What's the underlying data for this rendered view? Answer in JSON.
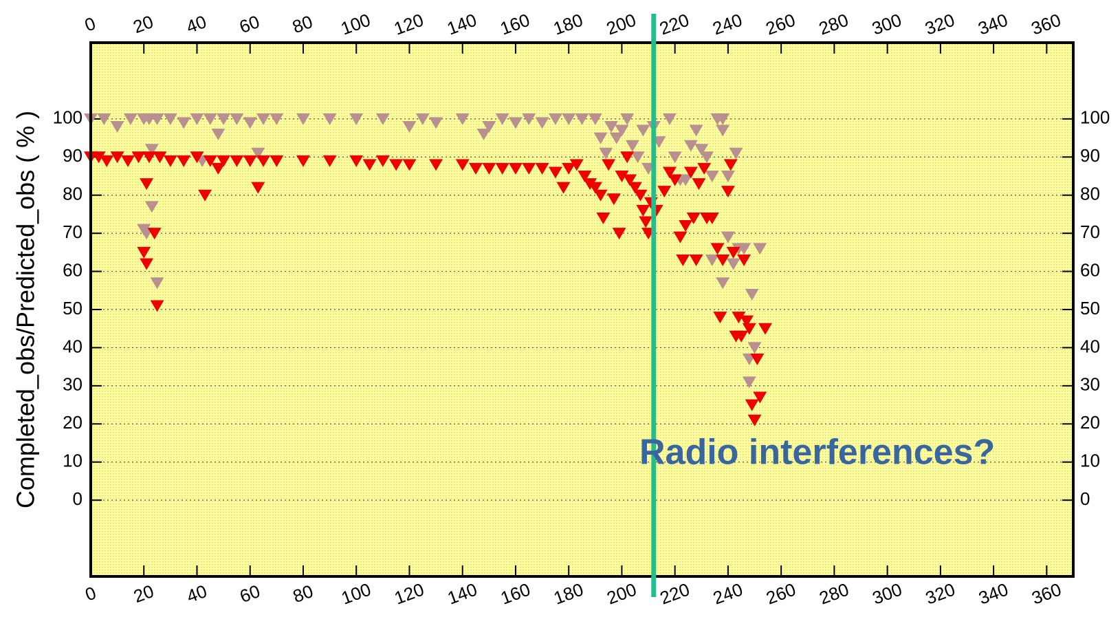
{
  "chart_data": {
    "type": "scatter",
    "y_label": "Completed_obs/Predicted_obs ( % )",
    "annotation": "Radio interferences?",
    "xlim": [
      0,
      370
    ],
    "ylim": [
      -20,
      120
    ],
    "xticks": [
      0,
      20,
      40,
      60,
      80,
      100,
      120,
      140,
      160,
      180,
      200,
      220,
      240,
      260,
      280,
      300,
      320,
      340,
      360
    ],
    "yticks": [
      0,
      10,
      20,
      30,
      40,
      50,
      60,
      70,
      80,
      90,
      100
    ],
    "grid": true,
    "marker_line": {
      "x": 212,
      "color": "#1fbf8f"
    },
    "series": [
      {
        "color": "#b89090",
        "x": [
          0,
          5,
          10,
          15,
          20,
          22,
          25,
          30,
          35,
          40,
          45,
          48,
          50,
          55,
          60,
          65,
          70,
          80,
          90,
          100,
          110,
          120,
          125,
          130,
          140,
          148,
          150,
          155,
          160,
          165,
          170,
          175,
          180,
          185,
          190,
          192,
          194,
          196,
          198,
          200,
          202,
          204,
          206,
          208,
          210,
          212,
          214,
          218,
          220,
          222,
          224,
          226,
          228,
          230,
          232,
          234,
          236,
          238,
          238,
          240,
          243,
          20,
          21,
          23,
          23,
          25,
          42,
          63,
          234,
          238,
          240,
          242,
          244,
          246,
          248,
          248,
          249,
          250,
          252
        ],
        "values": [
          100,
          100,
          98,
          100,
          100,
          100,
          100,
          100,
          99,
          100,
          100,
          96,
          100,
          100,
          99,
          100,
          100,
          100,
          100,
          100,
          100,
          98,
          100,
          99,
          100,
          96,
          98,
          100,
          99,
          100,
          99,
          100,
          100,
          100,
          100,
          95,
          91,
          98,
          95,
          97,
          100,
          93,
          90,
          97,
          87,
          98,
          94,
          100,
          90,
          84,
          84,
          93,
          97,
          92,
          90,
          85,
          100,
          100,
          97,
          85,
          91,
          71,
          70,
          92,
          77,
          57,
          89,
          91,
          63,
          57,
          69,
          62,
          66,
          66,
          37,
          31,
          54,
          40,
          66
        ]
      },
      {
        "color": "#ee0000",
        "x": [
          0,
          3,
          6,
          10,
          14,
          18,
          22,
          26,
          30,
          35,
          40,
          45,
          48,
          50,
          55,
          60,
          65,
          70,
          80,
          90,
          100,
          105,
          110,
          115,
          120,
          130,
          140,
          145,
          150,
          155,
          160,
          165,
          170,
          175,
          178,
          180,
          183,
          186,
          188,
          190,
          192,
          193,
          195,
          197,
          199,
          200,
          202,
          203,
          205,
          207,
          208,
          209,
          210,
          211,
          213,
          216,
          218,
          220,
          222,
          223,
          224,
          226,
          227,
          228,
          229,
          231,
          232,
          234,
          236,
          237,
          238,
          240,
          241,
          242,
          243,
          244,
          245,
          246,
          247,
          248,
          249,
          250,
          251,
          252,
          254,
          21,
          20,
          21,
          24,
          25,
          43,
          63
        ],
        "values": [
          90,
          90,
          89,
          90,
          89,
          90,
          90,
          90,
          89,
          89,
          90,
          89,
          87,
          89,
          89,
          89,
          89,
          89,
          89,
          89,
          89,
          88,
          89,
          88,
          88,
          88,
          88,
          87,
          87,
          87,
          87,
          87,
          87,
          86,
          82,
          87,
          88,
          85,
          83,
          82,
          80,
          74,
          88,
          79,
          70,
          85,
          90,
          84,
          82,
          80,
          76,
          73,
          70,
          78,
          76,
          81,
          86,
          84,
          69,
          63,
          72,
          86,
          74,
          63,
          83,
          87,
          74,
          74,
          66,
          48,
          63,
          81,
          88,
          65,
          43,
          48,
          43,
          63,
          47,
          45,
          25,
          21,
          37,
          27,
          45,
          83,
          65,
          62,
          70,
          51,
          80,
          82
        ]
      }
    ]
  }
}
